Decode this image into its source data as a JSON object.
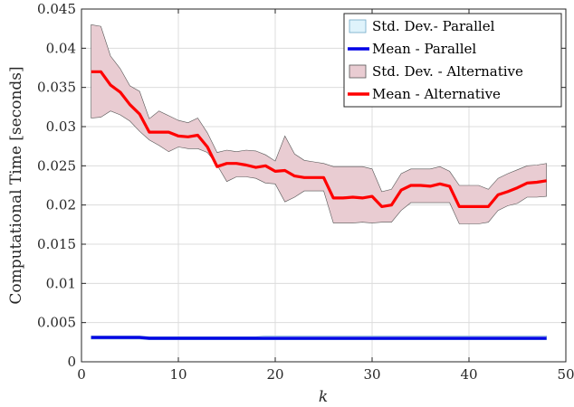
{
  "chart_data": {
    "type": "line",
    "title": "",
    "xlabel": "k",
    "ylabel": "Computational Time [seconds]",
    "xlim": [
      0,
      50
    ],
    "ylim": [
      0,
      0.045
    ],
    "xticks": [
      0,
      10,
      20,
      30,
      40,
      50
    ],
    "yticks": [
      0,
      0.005,
      0.01,
      0.015,
      0.02,
      0.025,
      0.03,
      0.035,
      0.04,
      0.045
    ],
    "xtick_labels": [
      "0",
      "10",
      "20",
      "30",
      "40",
      "50"
    ],
    "ytick_labels": [
      "0",
      "0.005",
      "0.01",
      "0.015",
      "0.02",
      "0.025",
      "0.03",
      "0.035",
      "0.04",
      "0.045"
    ],
    "grid": true,
    "legend_position": "top-right",
    "x": [
      1,
      2,
      3,
      4,
      5,
      6,
      7,
      8,
      9,
      10,
      11,
      12,
      13,
      14,
      15,
      16,
      17,
      18,
      19,
      20,
      21,
      22,
      23,
      24,
      25,
      26,
      27,
      28,
      29,
      30,
      31,
      32,
      33,
      34,
      35,
      36,
      37,
      38,
      39,
      40,
      41,
      42,
      43,
      44,
      45,
      46,
      47,
      48
    ],
    "series": [
      {
        "name": "Std. Dev.- Parallel",
        "kind": "band",
        "color": "#dff3fb",
        "stroke": "#6fa8c8",
        "lower": [
          0.0029,
          0.0029,
          0.0029,
          0.0029,
          0.0029,
          0.0029,
          0.0028,
          0.0028,
          0.0028,
          0.0028,
          0.0028,
          0.0028,
          0.0028,
          0.0028,
          0.0028,
          0.0028,
          0.0028,
          0.0028,
          0.0028,
          0.0028,
          0.0028,
          0.0028,
          0.0028,
          0.0028,
          0.0028,
          0.0028,
          0.0028,
          0.0028,
          0.0028,
          0.0028,
          0.0028,
          0.0028,
          0.0028,
          0.0028,
          0.0028,
          0.0028,
          0.0028,
          0.0028,
          0.0028,
          0.0028,
          0.0028,
          0.0028,
          0.0028,
          0.0028,
          0.0028,
          0.0028,
          0.0028,
          0.0028
        ],
        "upper": [
          0.0033,
          0.0033,
          0.0033,
          0.0033,
          0.0033,
          0.0033,
          0.0032,
          0.0032,
          0.0032,
          0.0032,
          0.0032,
          0.0032,
          0.0032,
          0.0032,
          0.0032,
          0.0032,
          0.0032,
          0.0032,
          0.0033,
          0.0033,
          0.0033,
          0.0033,
          0.0033,
          0.0033,
          0.0033,
          0.0033,
          0.0033,
          0.0033,
          0.0033,
          0.0033,
          0.0033,
          0.0033,
          0.0033,
          0.0033,
          0.0033,
          0.0033,
          0.0033,
          0.0033,
          0.0033,
          0.0033,
          0.0033,
          0.0033,
          0.0033,
          0.0033,
          0.0033,
          0.0033,
          0.0033,
          0.0033
        ]
      },
      {
        "name": "Mean - Parallel",
        "kind": "line",
        "color": "#0000e6",
        "values": [
          0.0031,
          0.0031,
          0.0031,
          0.0031,
          0.0031,
          0.0031,
          0.003,
          0.003,
          0.003,
          0.003,
          0.003,
          0.003,
          0.003,
          0.003,
          0.003,
          0.003,
          0.003,
          0.003,
          0.003,
          0.003,
          0.003,
          0.003,
          0.003,
          0.003,
          0.003,
          0.003,
          0.003,
          0.003,
          0.003,
          0.003,
          0.003,
          0.003,
          0.003,
          0.003,
          0.003,
          0.003,
          0.003,
          0.003,
          0.003,
          0.003,
          0.003,
          0.003,
          0.003,
          0.003,
          0.003,
          0.003,
          0.003,
          0.003
        ]
      },
      {
        "name": "Std. Dev. - Alternative",
        "kind": "band",
        "color": "#e9ccd2",
        "stroke": "#555555",
        "lower": [
          0.0311,
          0.0312,
          0.032,
          0.0315,
          0.0307,
          0.0294,
          0.0283,
          0.0276,
          0.0268,
          0.0274,
          0.0272,
          0.0272,
          0.0267,
          0.0251,
          0.023,
          0.0236,
          0.0236,
          0.0234,
          0.0228,
          0.0227,
          0.0204,
          0.021,
          0.0218,
          0.0218,
          0.0218,
          0.0177,
          0.0177,
          0.0177,
          0.0178,
          0.0177,
          0.0178,
          0.0178,
          0.0193,
          0.0203,
          0.0203,
          0.0203,
          0.0203,
          0.0203,
          0.0176,
          0.0176,
          0.0176,
          0.0178,
          0.0193,
          0.0199,
          0.0202,
          0.021,
          0.021,
          0.0211
        ],
        "upper": [
          0.043,
          0.0428,
          0.039,
          0.0374,
          0.0352,
          0.0345,
          0.031,
          0.032,
          0.0314,
          0.0308,
          0.0305,
          0.0311,
          0.0292,
          0.0267,
          0.027,
          0.0268,
          0.027,
          0.0269,
          0.0264,
          0.0256,
          0.0288,
          0.0265,
          0.0257,
          0.0255,
          0.0253,
          0.0249,
          0.0249,
          0.0249,
          0.0249,
          0.0246,
          0.0217,
          0.022,
          0.024,
          0.0246,
          0.0246,
          0.0246,
          0.0249,
          0.0243,
          0.0225,
          0.0225,
          0.0225,
          0.022,
          0.0234,
          0.024,
          0.0245,
          0.025,
          0.0251,
          0.0253
        ]
      },
      {
        "name": "Mean - Alternative",
        "kind": "line",
        "color": "#ff0000",
        "values": [
          0.037,
          0.037,
          0.0353,
          0.0344,
          0.0328,
          0.0316,
          0.0293,
          0.0293,
          0.0293,
          0.0288,
          0.0287,
          0.0289,
          0.0274,
          0.0249,
          0.0253,
          0.0253,
          0.0251,
          0.0248,
          0.025,
          0.0243,
          0.0244,
          0.0237,
          0.0235,
          0.0235,
          0.0235,
          0.0209,
          0.0209,
          0.021,
          0.0209,
          0.0211,
          0.0198,
          0.02,
          0.0219,
          0.0225,
          0.0225,
          0.0224,
          0.0227,
          0.0224,
          0.0198,
          0.0198,
          0.0198,
          0.0198,
          0.0213,
          0.0217,
          0.0222,
          0.0228,
          0.0229,
          0.0231
        ]
      }
    ]
  }
}
